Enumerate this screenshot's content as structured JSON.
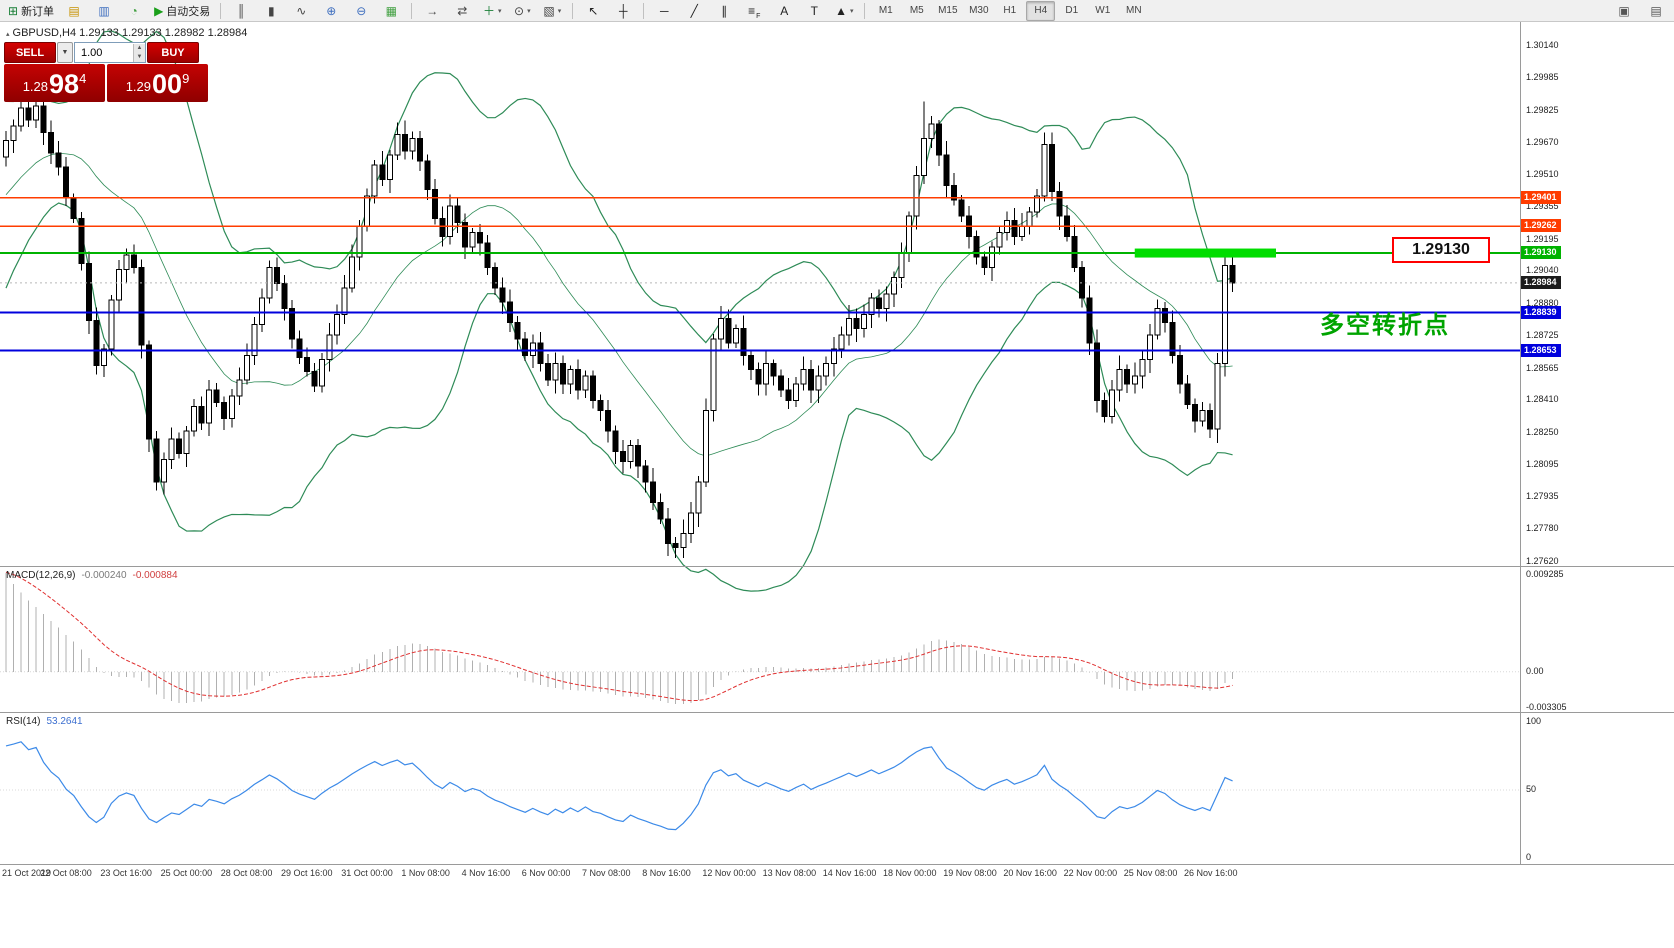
{
  "toolbar": {
    "buttons": [
      {
        "name": "new-order",
        "glyph": "⊞",
        "color": "#1a7f37",
        "label": "新订单"
      },
      {
        "name": "chart-window",
        "glyph": "▤",
        "color": "#c79200"
      },
      {
        "name": "market-watch",
        "glyph": "▥",
        "color": "#3f6fbf"
      },
      {
        "name": "navigator",
        "glyph": "◔",
        "color": "#3f9f3f"
      },
      {
        "name": "autotrading",
        "glyph": "▶",
        "color": "#1a9f1a",
        "label": "自动交易"
      },
      {
        "sep": true
      },
      {
        "name": "chart-bars",
        "glyph": "║",
        "color": "#444444"
      },
      {
        "name": "chart-candles",
        "glyph": "▮",
        "color": "#444444"
      },
      {
        "name": "chart-line",
        "glyph": "∿",
        "color": "#444444"
      },
      {
        "name": "zoom-in",
        "glyph": "⊕",
        "color": "#3f6fbf"
      },
      {
        "name": "zoom-out",
        "glyph": "⊖",
        "color": "#3f6fbf"
      },
      {
        "name": "grid",
        "glyph": "▦",
        "color": "#3f9f3f"
      },
      {
        "sep": true
      },
      {
        "name": "auto-scroll",
        "glyph": "→",
        "color": "#444444"
      },
      {
        "name": "chart-shift",
        "glyph": "⇄",
        "color": "#444444"
      },
      {
        "name": "indicators",
        "glyph": "＋",
        "color": "#1a7f37",
        "caret": true
      },
      {
        "name": "periods",
        "glyph": "⊙",
        "color": "#444444",
        "caret": true
      },
      {
        "name": "templates",
        "glyph": "▧",
        "color": "#444444",
        "caret": true
      },
      {
        "sep": true
      },
      {
        "name": "cursor",
        "glyph": "↖",
        "color": "#222222"
      },
      {
        "name": "crosshair",
        "glyph": "┼",
        "color": "#222222"
      },
      {
        "sep": true
      },
      {
        "name": "horizontal-line",
        "glyph": "─",
        "color": "#222222"
      },
      {
        "name": "trendline",
        "glyph": "╱",
        "color": "#222222"
      },
      {
        "name": "equidistant-channel",
        "glyph": "∥",
        "color": "#222222"
      },
      {
        "name": "fibonacci",
        "glyph": "≡",
        "color": "#222222",
        "sub": "F"
      },
      {
        "name": "text",
        "glyph": "A",
        "color": "#222222"
      },
      {
        "name": "text-label",
        "glyph": "T",
        "color": "#222222"
      },
      {
        "name": "arrows",
        "glyph": "▲",
        "color": "#222222",
        "caret": true
      },
      {
        "sep": true
      }
    ],
    "timeframes": [
      {
        "label": "M1"
      },
      {
        "label": "M5"
      },
      {
        "label": "M15"
      },
      {
        "label": "M30"
      },
      {
        "label": "H1"
      },
      {
        "label": "H4",
        "active": true
      },
      {
        "label": "D1"
      },
      {
        "label": "W1"
      },
      {
        "label": "MN"
      }
    ],
    "right_buttons": [
      {
        "name": "new-chart",
        "glyph": "▣",
        "color": "#555555"
      },
      {
        "name": "window-arrange",
        "glyph": "▤",
        "color": "#555555"
      }
    ]
  },
  "quote_panel": {
    "sell_label": "SELL",
    "buy_label": "BUY",
    "volume": "1.00",
    "sell_price": {
      "small": "1.28",
      "big": "98",
      "sup": "4"
    },
    "buy_price": {
      "small": "1.29",
      "big": "00",
      "sup": "9"
    }
  },
  "chart": {
    "symbol_line": "GBPUSD,H4 1.29133 1.29133 1.28982 1.28984",
    "annotations": {
      "price_callout": "1.29130",
      "cn_note": "多空转折点"
    }
  },
  "chart_data": {
    "type": "candlestick",
    "symbol": "GBPUSD",
    "timeframe": "H4",
    "y_range": [
      1.276,
      1.3024
    ],
    "price_axis_labels": [
      "1.30140",
      "1.29985",
      "1.29825",
      "1.29670",
      "1.29510",
      "1.29355",
      "1.29195",
      "1.29040",
      "1.28880",
      "1.28725",
      "1.28565",
      "1.28410",
      "1.28250",
      "1.28095",
      "1.27935",
      "1.27780",
      "1.27620"
    ],
    "date_labels": [
      "21 Oct 2019",
      "22 Oct 08:00",
      "23 Oct 16:00",
      "25 Oct 00:00",
      "28 Oct 08:00",
      "29 Oct 16:00",
      "31 Oct 00:00",
      "1 Nov 08:00",
      "4 Nov 16:00",
      "6 Nov 00:00",
      "7 Nov 08:00",
      "8 Nov 16:00",
      "12 Nov 00:00",
      "13 Nov 08:00",
      "14 Nov 16:00",
      "18 Nov 00:00",
      "19 Nov 08:00",
      "20 Nov 16:00",
      "22 Nov 00:00",
      "25 Nov 08:00",
      "26 Nov 16:00"
    ],
    "candles": {
      "first_open": 1.296,
      "closes": [
        1.2968,
        1.2975,
        1.2984,
        1.2978,
        1.2985,
        1.2972,
        1.2962,
        1.2955,
        1.294,
        1.293,
        1.2908,
        1.288,
        1.2858,
        1.2866,
        1.289,
        1.2905,
        1.2912,
        1.2906,
        1.2868,
        1.2822,
        1.2801,
        1.2812,
        1.2822,
        1.2815,
        1.2826,
        1.2838,
        1.283,
        1.2846,
        1.284,
        1.2832,
        1.2843,
        1.2851,
        1.2863,
        1.2878,
        1.2891,
        1.2906,
        1.2898,
        1.2886,
        1.2871,
        1.2862,
        1.2855,
        1.2848,
        1.2861,
        1.2873,
        1.2883,
        1.2896,
        1.2911,
        1.2926,
        1.2941,
        1.2956,
        1.2949,
        1.2961,
        1.2971,
        1.2963,
        1.2969,
        1.2958,
        1.2944,
        1.293,
        1.2921,
        1.2936,
        1.2928,
        1.2916,
        1.2923,
        1.2918,
        1.2906,
        1.2896,
        1.2889,
        1.2879,
        1.2871,
        1.2863,
        1.2869,
        1.2859,
        1.2851,
        1.2859,
        1.2849,
        1.2856,
        1.2846,
        1.2853,
        1.2841,
        1.2836,
        1.2826,
        1.2816,
        1.2811,
        1.2819,
        1.2809,
        1.2801,
        1.2791,
        1.2783,
        1.2771,
        1.2769,
        1.2776,
        1.2786,
        1.2801,
        1.2836,
        1.2871,
        1.2881,
        1.2869,
        1.2876,
        1.2863,
        1.2856,
        1.2849,
        1.2859,
        1.2853,
        1.2846,
        1.2841,
        1.2849,
        1.2856,
        1.2846,
        1.2853,
        1.2859,
        1.2866,
        1.2873,
        1.2881,
        1.2876,
        1.2883,
        1.2891,
        1.2886,
        1.2893,
        1.2901,
        1.2913,
        1.2931,
        1.2951,
        1.2969,
        1.2976,
        1.2961,
        1.2946,
        1.2939,
        1.2931,
        1.2921,
        1.2911,
        1.2906,
        1.2916,
        1.2923,
        1.2929,
        1.2921,
        1.2926,
        1.2933,
        1.2941,
        1.2966,
        1.2943,
        1.2931,
        1.2921,
        1.2906,
        1.2891,
        1.2869,
        1.2841,
        1.2833,
        1.2846,
        1.2856,
        1.2849,
        1.2853,
        1.2861,
        1.2873,
        1.2886,
        1.2879,
        1.2863,
        1.2849,
        1.2839,
        1.2831,
        1.2836,
        1.2827,
        1.2859,
        1.2907,
        1.28984
      ],
      "wick_overrides": {
        "2": {
          "high": 1.2993
        },
        "20": {
          "low": 1.2797
        },
        "88": {
          "low": 1.2765
        },
        "122": {
          "high": 1.2987
        },
        "138": {
          "high": 1.2972
        },
        "162": {
          "high": 1.2913
        }
      }
    },
    "lead_in_closes": [
      1.289,
      1.2898,
      1.2906,
      1.2915,
      1.2924,
      1.2932,
      1.294,
      1.2946,
      1.294,
      1.2947,
      1.2952,
      1.2958,
      1.2949,
      1.2955,
      1.296,
      1.2964,
      1.2958,
      1.2962,
      1.2966
    ],
    "bollinger": {
      "period": 20,
      "deviation": 2,
      "color": "#2e8b57"
    },
    "hlines": [
      {
        "price": 1.29401,
        "label": "1.29401",
        "color": "#ff3c00",
        "width": 1.5
      },
      {
        "price": 1.29262,
        "label": "1.29262",
        "color": "#ff3c00",
        "width": 1.5
      },
      {
        "price": 1.2913,
        "label": "1.29130",
        "color": "#00b300",
        "width": 2
      },
      {
        "price": 1.28839,
        "label": "1.28839",
        "color": "#0000dd",
        "width": 2
      },
      {
        "price": 1.28653,
        "label": "1.28653",
        "color": "#0000dd",
        "width": 2
      }
    ],
    "current_price": {
      "value": 1.28984,
      "label": "1.28984",
      "bg": "#1c1c1c"
    },
    "highlight": {
      "price": 1.2913,
      "from_bar": 150,
      "to_x": 1276,
      "color": "#00dd00",
      "thickness": 9
    }
  },
  "macd": {
    "name": "MACD(12,26,9)",
    "value_main": "-0.000240",
    "value_signal": "-0.000884",
    "axis_labels": [
      "0.009285",
      "0.00",
      "-0.003305"
    ],
    "max": 0.009285,
    "min": -0.003305,
    "histogram_color": "#b0b0b0",
    "signal_color": "#e03030"
  },
  "rsi": {
    "name": "RSI(14)",
    "value": "53.2641",
    "axis_labels": [
      "100",
      "50",
      "0"
    ],
    "max": 100,
    "min": 0,
    "line_color": "#3c8ae8"
  }
}
